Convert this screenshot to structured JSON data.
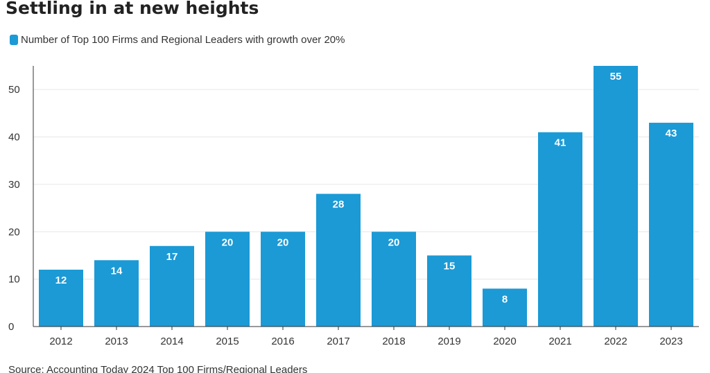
{
  "header": {
    "title": "Settling in at new heights"
  },
  "legend": {
    "label": "Number of Top 100 Firms and Regional Leaders with growth over 20%"
  },
  "footer": {
    "source": "Source: Accounting Today 2024 Top 100 Firms/Regional Leaders"
  },
  "colors": {
    "bar": "#1b9ad6",
    "bar_label": "#ffffff",
    "gridline": "#e6e6e6",
    "axis": "#333333"
  },
  "chart_data": {
    "type": "bar",
    "title": "Settling in at new heights",
    "xlabel": "",
    "ylabel": "",
    "categories": [
      "2012",
      "2013",
      "2014",
      "2015",
      "2016",
      "2017",
      "2018",
      "2019",
      "2020",
      "2021",
      "2022",
      "2023"
    ],
    "series": [
      {
        "name": "Number of Top 100 Firms and Regional Leaders with growth over 20%",
        "values": [
          12,
          14,
          17,
          20,
          20,
          28,
          20,
          15,
          8,
          41,
          55,
          43
        ]
      }
    ],
    "data_labels": [
      "12",
      "14",
      "17",
      "20",
      "20",
      "28",
      "20",
      "15",
      "8",
      "41",
      "55",
      "43"
    ],
    "ylim": [
      0,
      55
    ],
    "yticks": [
      0,
      10,
      20,
      30,
      40,
      50
    ],
    "ytick_labels": [
      "0",
      "10",
      "20",
      "30",
      "40",
      "50"
    ],
    "grid": true,
    "legend_position": "top-left"
  }
}
